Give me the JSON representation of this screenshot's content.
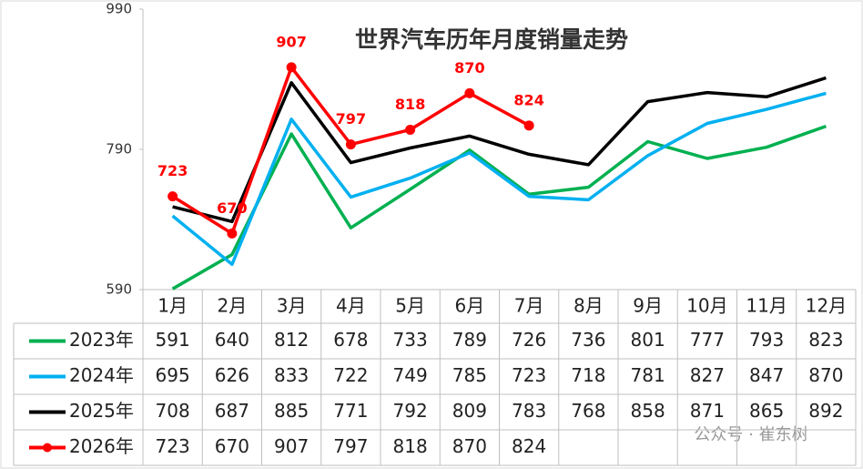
{
  "chart_data": {
    "type": "line",
    "title": "世界汽车历年月度销量走势",
    "categories": [
      "1月",
      "2月",
      "3月",
      "4月",
      "5月",
      "6月",
      "7月",
      "8月",
      "9月",
      "10月",
      "11月",
      "12月"
    ],
    "series": [
      {
        "name": "2023年",
        "color": "#00b050",
        "values": [
          591,
          640,
          812,
          678,
          733,
          789,
          726,
          736,
          801,
          777,
          793,
          823
        ]
      },
      {
        "name": "2024年",
        "color": "#00b0f0",
        "values": [
          695,
          626,
          833,
          722,
          749,
          785,
          723,
          718,
          781,
          827,
          847,
          870
        ]
      },
      {
        "name": "2025年",
        "color": "#000000",
        "values": [
          708,
          687,
          885,
          771,
          792,
          809,
          783,
          768,
          858,
          871,
          865,
          892
        ]
      },
      {
        "name": "2026年",
        "color": "#ff0000",
        "markers": true,
        "data_labels": true,
        "values": [
          723,
          670,
          907,
          797,
          818,
          870,
          824,
          null,
          null,
          null,
          null,
          null
        ]
      }
    ],
    "ylim": [
      590,
      990
    ],
    "yticks": [
      590,
      790,
      990
    ],
    "watermark": "公众号 · 崔东树"
  }
}
